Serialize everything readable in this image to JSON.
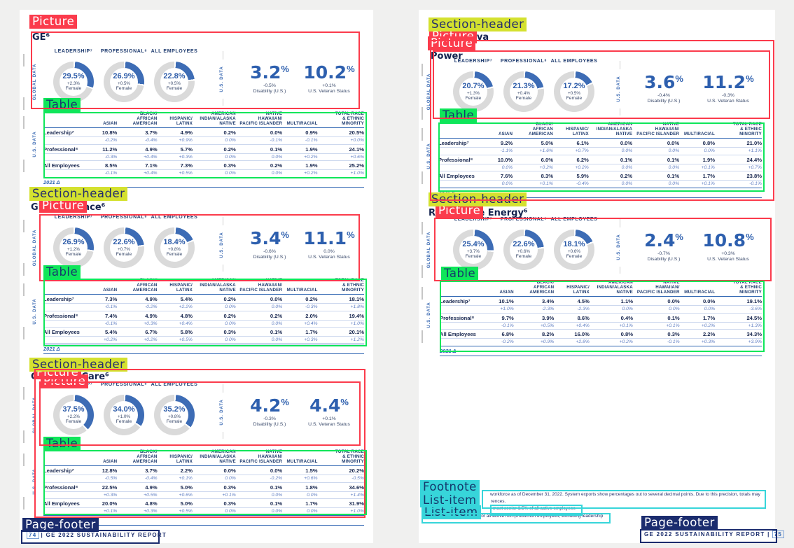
{
  "annotation_labels": {
    "picture": "Picture",
    "table": "Table",
    "section_header": "Section-header",
    "footnote": "Footnote",
    "list_item": "List-item",
    "page_footer": "Page-footer"
  },
  "colors": {
    "annotation_red": "#fb3b4c",
    "annotation_green": "#0fe65a",
    "annotation_yellow": "#d4e12f",
    "annotation_cyan": "#37d5da",
    "annotation_navy": "#1b2c6e",
    "accent_blue": "#2d5fae",
    "donut_arc": "#3d6cb5",
    "donut_track": "#dadada",
    "navy_text": "#16254e"
  },
  "rails": {
    "global": "GLOBAL DATA",
    "us": "U.S. DATA"
  },
  "columns": [
    "ASIAN",
    "BLACK/\nAFRICAN\nAMERICAN",
    "HISPANIC/\nLATINX",
    "AMERICAN\nINDIAN/ALASKA\nNATIVE",
    "NATIVE\nHAWAIIAN/\nPACIFIC ISLANDER",
    "MULTIRACIAL",
    "TOTAL RACE\n& ETHNIC\nMINORITY"
  ],
  "table_link": "2021 Δ",
  "sections": [
    {
      "id": "ge",
      "title": "GE⁶",
      "donuts": [
        {
          "label": "LEADERSHIP⁷",
          "value": "29.5%",
          "pct": 29.5,
          "delta": "+2.3%",
          "caption": "Female"
        },
        {
          "label": "PROFESSIONAL⁸",
          "value": "26.9%",
          "pct": 26.9,
          "delta": "+0.5%",
          "caption": "Female"
        },
        {
          "label": "ALL EMPLOYEES",
          "value": "22.8%",
          "pct": 22.8,
          "delta": "+0.5%",
          "caption": "Female"
        }
      ],
      "stats": [
        {
          "value": "3.2",
          "unit": "%",
          "delta": "-0.5%",
          "label": "Disability (U.S.)"
        },
        {
          "value": "10.2",
          "unit": "%",
          "delta": "+0.1%",
          "label": "U.S. Veteran Status"
        }
      ],
      "rows": [
        {
          "label": "Leadership⁷",
          "values": [
            "10.8%",
            "3.7%",
            "4.9%",
            "0.2%",
            "0.0%",
            "0.9%",
            "20.5%"
          ],
          "deltas": [
            "-0.2%",
            "-0.4%",
            "+0.9%",
            "0.0%",
            "-0.1%",
            "-0.1%",
            "+0.0%"
          ]
        },
        {
          "label": "Professional⁸",
          "values": [
            "11.2%",
            "4.9%",
            "5.7%",
            "0.2%",
            "0.1%",
            "1.9%",
            "24.1%"
          ],
          "deltas": [
            "-0.3%",
            "+0.4%",
            "+0.3%",
            "0.0%",
            "0.0%",
            "+0.2%",
            "+0.6%"
          ]
        },
        {
          "label": "All Employees",
          "values": [
            "8.5%",
            "7.1%",
            "7.3%",
            "0.3%",
            "0.2%",
            "1.9%",
            "25.2%"
          ],
          "deltas": [
            "-0.1%",
            "+0.4%",
            "+0.5%",
            "0.0%",
            "0.0%",
            "+0.2%",
            "+1.0%"
          ]
        }
      ]
    },
    {
      "id": "aerospace",
      "title": "GE Aerospace⁶",
      "donuts": [
        {
          "label": "LEADERSHIP⁷",
          "value": "26.9%",
          "pct": 26.9,
          "delta": "+1.2%",
          "caption": "Female"
        },
        {
          "label": "PROFESSIONAL⁸",
          "value": "22.6%",
          "pct": 22.6,
          "delta": "+0.7%",
          "caption": "Female"
        },
        {
          "label": "ALL EMPLOYEES",
          "value": "18.4%",
          "pct": 18.4,
          "delta": "+0.8%",
          "caption": "Female"
        }
      ],
      "stats": [
        {
          "value": "3.4",
          "unit": "%",
          "delta": "-0.6%",
          "label": "Disability (U.S.)"
        },
        {
          "value": "11.1",
          "unit": "%",
          "delta": "0.0%",
          "label": "U.S. Veteran Status"
        }
      ],
      "rows": [
        {
          "label": "Leadership⁷",
          "values": [
            "7.3%",
            "4.9%",
            "5.4%",
            "0.2%",
            "0.0%",
            "0.2%",
            "18.1%"
          ],
          "deltas": [
            "-0.1%",
            "-0.2%",
            "+2.2%",
            "0.0%",
            "0.0%",
            "-0.3%",
            "+1.8%"
          ]
        },
        {
          "label": "Professional⁸",
          "values": [
            "7.4%",
            "4.9%",
            "4.8%",
            "0.2%",
            "0.2%",
            "2.0%",
            "19.4%"
          ],
          "deltas": [
            "-0.1%",
            "+0.3%",
            "+0.4%",
            "0.0%",
            "0.0%",
            "+0.4%",
            "+1.0%"
          ]
        },
        {
          "label": "All Employees",
          "values": [
            "5.4%",
            "6.7%",
            "5.8%",
            "0.3%",
            "0.1%",
            "1.7%",
            "20.1%"
          ],
          "deltas": [
            "+0.2%",
            "+0.2%",
            "+0.5%",
            "0.0%",
            "0.0%",
            "+0.3%",
            "+1.2%"
          ]
        }
      ]
    },
    {
      "id": "healthcare",
      "title": "GE HealthCare⁶",
      "donuts": [
        {
          "label": "LEADERSHIP⁷",
          "value": "37.5%",
          "pct": 37.5,
          "delta": "+2.2%",
          "caption": "Female"
        },
        {
          "label": "PROFESSIONAL⁸",
          "value": "34.0%",
          "pct": 34.0,
          "delta": "+1.0%",
          "caption": "Female"
        },
        {
          "label": "ALL EMPLOYEES",
          "value": "35.2%",
          "pct": 35.2,
          "delta": "+0.8%",
          "caption": "Female"
        }
      ],
      "stats": [
        {
          "value": "4.2",
          "unit": "%",
          "delta": "-0.3%",
          "label": "Disability (U.S.)"
        },
        {
          "value": "4.4",
          "unit": "%",
          "delta": "+0.1%",
          "label": "U.S. Veteran Status"
        }
      ],
      "rows": [
        {
          "label": "Leadership⁷",
          "values": [
            "12.8%",
            "3.7%",
            "2.2%",
            "0.0%",
            "0.0%",
            "1.5%",
            "20.2%"
          ],
          "deltas": [
            "-0.5%",
            "-0.4%",
            "+0.1%",
            "0.0%",
            "-0.2%",
            "+0.6%",
            "-0.5%"
          ]
        },
        {
          "label": "Professional⁸",
          "values": [
            "22.5%",
            "4.9%",
            "5.0%",
            "0.3%",
            "0.1%",
            "1.8%",
            "34.6%"
          ],
          "deltas": [
            "+0.3%",
            "+0.5%",
            "+0.6%",
            "+0.1%",
            "0.0%",
            "0.0%",
            "+1.4%"
          ]
        },
        {
          "label": "All Employees",
          "values": [
            "20.0%",
            "4.8%",
            "5.0%",
            "0.3%",
            "0.1%",
            "1.7%",
            "31.9%"
          ],
          "deltas": [
            "+0.1%",
            "+0.3%",
            "+0.5%",
            "0.0%",
            "0.0%",
            "0.0%",
            "+1.0%"
          ]
        }
      ]
    },
    {
      "id": "power",
      "title": "GE Vernova",
      "subtitle": "Power",
      "donuts": [
        {
          "label": "LEADERSHIP⁷",
          "value": "20.7%",
          "pct": 20.7,
          "delta": "+1.3%",
          "caption": "Female"
        },
        {
          "label": "PROFESSIONAL⁸",
          "value": "21.3%",
          "pct": 21.3,
          "delta": "+0.4%",
          "caption": "Female"
        },
        {
          "label": "ALL EMPLOYEES",
          "value": "17.2%",
          "pct": 17.2,
          "delta": "+0.5%",
          "caption": "Female"
        }
      ],
      "stats": [
        {
          "value": "3.6",
          "unit": "%",
          "delta": "-0.4%",
          "label": "Disability (U.S.)"
        },
        {
          "value": "11.2",
          "unit": "%",
          "delta": "-0.3%",
          "label": "U.S. Veteran Status"
        }
      ],
      "rows": [
        {
          "label": "Leadership⁷",
          "values": [
            "9.2%",
            "5.0%",
            "6.1%",
            "0.0%",
            "0.0%",
            "0.8%",
            "21.0%"
          ],
          "deltas": [
            "-1.1%",
            "+1.6%",
            "+0.7%",
            "0.0%",
            "0.0%",
            "0.0%",
            "+1.1%"
          ]
        },
        {
          "label": "Professional⁸",
          "values": [
            "10.0%",
            "6.0%",
            "6.2%",
            "0.1%",
            "0.1%",
            "1.9%",
            "24.4%"
          ],
          "deltas": [
            "0.0%",
            "+0.2%",
            "+0.2%",
            "0.0%",
            "0.0%",
            "+0.1%",
            "+0.7%"
          ]
        },
        {
          "label": "All Employees",
          "values": [
            "7.6%",
            "8.3%",
            "5.9%",
            "0.2%",
            "0.1%",
            "1.7%",
            "23.8%"
          ],
          "deltas": [
            "0.0%",
            "+0.1%",
            "-0.4%",
            "0.0%",
            "0.0%",
            "+0.1%",
            "-0.1%"
          ]
        }
      ]
    },
    {
      "id": "renewable",
      "title": "Renewable Energy⁶",
      "donuts": [
        {
          "label": "LEADERSHIP⁷",
          "value": "25.4%",
          "pct": 25.4,
          "delta": "+3.7%",
          "caption": "Female"
        },
        {
          "label": "PROFESSIONAL⁸",
          "value": "22.6%",
          "pct": 22.6,
          "delta": "+0.6%",
          "caption": "Female"
        },
        {
          "label": "ALL EMPLOYEES",
          "value": "18.1%",
          "pct": 18.1,
          "delta": "+0.6%",
          "caption": "Female"
        }
      ],
      "stats": [
        {
          "value": "2.4",
          "unit": "%",
          "delta": "-0.7%",
          "label": "Disability (U.S.)"
        },
        {
          "value": "10.8",
          "unit": "%",
          "delta": "+0.3%",
          "label": "U.S. Veteran Status"
        }
      ],
      "rows": [
        {
          "label": "Leadership⁷",
          "values": [
            "10.1%",
            "3.4%",
            "4.5%",
            "1.1%",
            "0.0%",
            "0.0%",
            "19.1%"
          ],
          "deltas": [
            "+1.0%",
            "-2.3%",
            "-2.3%",
            "0.0%",
            "0.0%",
            "0.0%",
            "-3.6%"
          ]
        },
        {
          "label": "Professional⁸",
          "values": [
            "9.7%",
            "3.9%",
            "8.6%",
            "0.4%",
            "0.1%",
            "1.7%",
            "24.5%"
          ],
          "deltas": [
            "-0.1%",
            "+0.5%",
            "+0.4%",
            "+0.1%",
            "+0.1%",
            "+0.2%",
            "+1.3%"
          ]
        },
        {
          "label": "All Employees",
          "values": [
            "6.8%",
            "8.2%",
            "16.0%",
            "0.8%",
            "0.3%",
            "2.2%",
            "34.3%"
          ],
          "deltas": [
            "-0.2%",
            "+0.9%",
            "+2.8%",
            "+0.2%",
            "-0.1%",
            "+0.3%",
            "+3.9%"
          ]
        }
      ]
    }
  ],
  "footnotes": {
    "lines": [
      "workforce as of December 31, 2022. System exports show percentages out to several decimal points. Due to this precision, totals may",
      "rences.",
      "most senior 1.5% of all active employees",
      "Professional accounts for all active non-production employees, excluding leadership"
    ]
  },
  "page_footers": {
    "left": {
      "num": "74",
      "separator": "|",
      "title": "GE 2022 SUSTAINABILITY REPORT"
    },
    "right": {
      "title": "GE 2022 SUSTAINABILITY REPORT",
      "separator": "|",
      "num": "75"
    }
  }
}
